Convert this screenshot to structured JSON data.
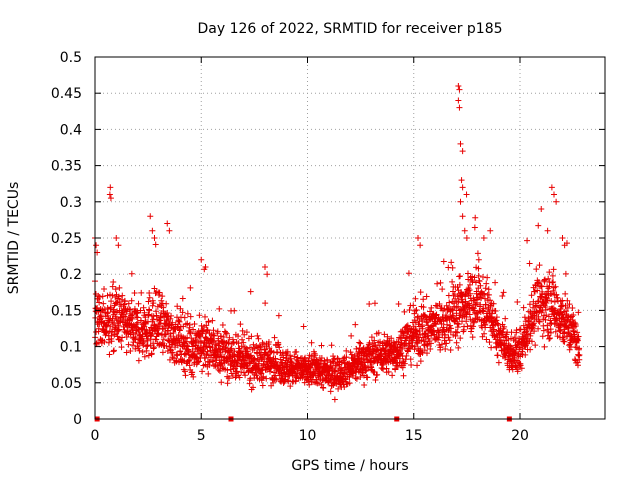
{
  "chart_data": {
    "type": "scatter",
    "title": "Day 126 of 2022, SRMTID for receiver p185",
    "xlabel": "GPS time / hours",
    "ylabel": "SRMTID / TECUs",
    "xlim": [
      0,
      24
    ],
    "ylim": [
      0,
      0.5
    ],
    "x_ticks": [
      "0",
      "5",
      "10",
      "15",
      "20"
    ],
    "y_ticks": [
      "0",
      "0.05",
      "0.1",
      "0.15",
      "0.2",
      "0.25",
      "0.3",
      "0.35",
      "0.4",
      "0.45",
      "0.5"
    ],
    "grid": true,
    "marker": "plus",
    "series_color": "#e80000",
    "envelope": {
      "x": [
        0,
        0.5,
        1,
        1.5,
        2,
        2.5,
        3,
        3.5,
        4,
        4.5,
        5,
        5.5,
        6,
        6.5,
        7,
        7.5,
        8,
        8.5,
        9,
        9.5,
        10,
        10.5,
        11,
        11.5,
        12,
        12.5,
        13,
        13.5,
        14,
        14.5,
        15,
        15.5,
        16,
        16.5,
        17,
        17.5,
        18,
        18.5,
        19,
        19.5,
        20,
        20.5,
        21,
        21.5,
        22,
        22.5,
        22.8
      ],
      "median": [
        0.14,
        0.13,
        0.14,
        0.13,
        0.12,
        0.13,
        0.13,
        0.12,
        0.11,
        0.1,
        0.1,
        0.1,
        0.09,
        0.085,
        0.08,
        0.08,
        0.08,
        0.08,
        0.07,
        0.07,
        0.065,
        0.07,
        0.06,
        0.065,
        0.07,
        0.08,
        0.085,
        0.09,
        0.09,
        0.1,
        0.12,
        0.12,
        0.13,
        0.13,
        0.15,
        0.16,
        0.16,
        0.15,
        0.11,
        0.09,
        0.09,
        0.14,
        0.16,
        0.16,
        0.14,
        0.12,
        0.09
      ],
      "spread": [
        0.05,
        0.05,
        0.06,
        0.05,
        0.05,
        0.06,
        0.06,
        0.05,
        0.05,
        0.05,
        0.05,
        0.05,
        0.04,
        0.04,
        0.04,
        0.04,
        0.04,
        0.035,
        0.035,
        0.03,
        0.03,
        0.03,
        0.03,
        0.03,
        0.03,
        0.035,
        0.035,
        0.035,
        0.035,
        0.04,
        0.05,
        0.05,
        0.05,
        0.05,
        0.06,
        0.06,
        0.06,
        0.05,
        0.04,
        0.035,
        0.035,
        0.05,
        0.06,
        0.06,
        0.05,
        0.05,
        0.03
      ]
    },
    "highlights": [
      {
        "x": 0.0,
        "y": 0.25
      },
      {
        "x": 0.05,
        "y": 0.24
      },
      {
        "x": 0.1,
        "y": 0.23
      },
      {
        "x": 0.7,
        "y": 0.31
      },
      {
        "x": 0.72,
        "y": 0.32
      },
      {
        "x": 0.75,
        "y": 0.305
      },
      {
        "x": 1.0,
        "y": 0.25
      },
      {
        "x": 1.1,
        "y": 0.24
      },
      {
        "x": 2.6,
        "y": 0.28
      },
      {
        "x": 2.7,
        "y": 0.26
      },
      {
        "x": 2.8,
        "y": 0.25
      },
      {
        "x": 3.4,
        "y": 0.27
      },
      {
        "x": 3.5,
        "y": 0.26
      },
      {
        "x": 5.0,
        "y": 0.22
      },
      {
        "x": 5.2,
        "y": 0.21
      },
      {
        "x": 8.0,
        "y": 0.21
      },
      {
        "x": 8.1,
        "y": 0.2
      },
      {
        "x": 15.2,
        "y": 0.25
      },
      {
        "x": 15.3,
        "y": 0.24
      },
      {
        "x": 17.1,
        "y": 0.46
      },
      {
        "x": 17.15,
        "y": 0.455
      },
      {
        "x": 17.1,
        "y": 0.44
      },
      {
        "x": 17.15,
        "y": 0.43
      },
      {
        "x": 17.2,
        "y": 0.38
      },
      {
        "x": 17.3,
        "y": 0.37
      },
      {
        "x": 17.25,
        "y": 0.33
      },
      {
        "x": 17.3,
        "y": 0.32
      },
      {
        "x": 17.2,
        "y": 0.3
      },
      {
        "x": 17.3,
        "y": 0.28
      },
      {
        "x": 17.4,
        "y": 0.26
      },
      {
        "x": 17.5,
        "y": 0.25
      },
      {
        "x": 18.3,
        "y": 0.25
      },
      {
        "x": 18.6,
        "y": 0.26
      },
      {
        "x": 21.0,
        "y": 0.29
      },
      {
        "x": 21.3,
        "y": 0.26
      },
      {
        "x": 21.5,
        "y": 0.32
      },
      {
        "x": 21.6,
        "y": 0.31
      },
      {
        "x": 21.7,
        "y": 0.3
      },
      {
        "x": 22.0,
        "y": 0.25
      },
      {
        "x": 22.1,
        "y": 0.24
      }
    ],
    "zero_points": [
      {
        "x": 0.1,
        "y": 0
      },
      {
        "x": 6.4,
        "y": 0
      },
      {
        "x": 14.2,
        "y": 0
      },
      {
        "x": 19.5,
        "y": 0
      }
    ]
  }
}
